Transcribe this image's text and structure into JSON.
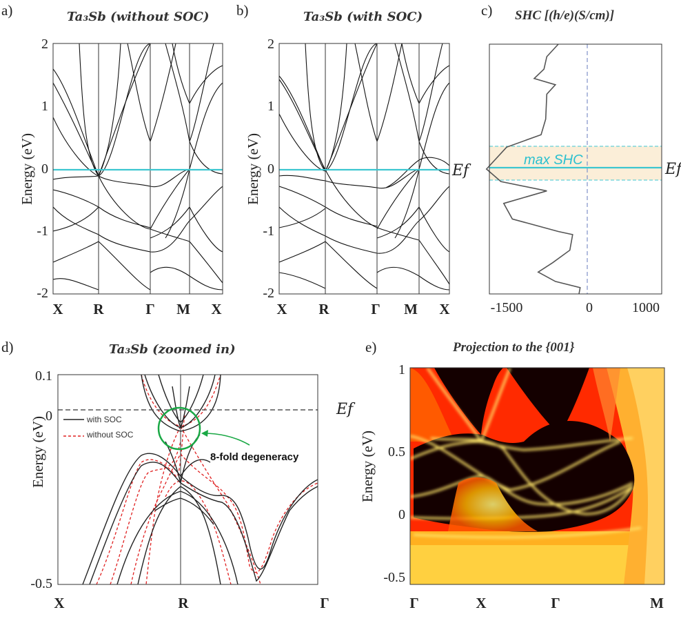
{
  "panels": {
    "a": {
      "letter": "a)",
      "title": "Ta₃Sb (without SOC)",
      "yticks": [
        "2",
        "1",
        "0",
        "-1",
        "-2"
      ],
      "ylabel": "Energy (eV)",
      "kpoints": [
        "X",
        "R",
        "Γ",
        "M",
        "X"
      ]
    },
    "b": {
      "letter": "b)",
      "title": "Ta₃Sb (with SOC)",
      "yticks": [
        "2",
        "1",
        "0",
        "-1",
        "-2"
      ],
      "ylabel": "Energy (eV)",
      "kpoints": [
        "X",
        "R",
        "Γ",
        "M",
        "X"
      ],
      "ef_label": "Ef"
    },
    "c": {
      "letter": "c)",
      "title": "SHC [(h/e)(S/cm)]",
      "xticks": [
        "-1500",
        "0",
        "1000"
      ],
      "ef_label": "Ef",
      "annotation": "max SHC"
    },
    "d": {
      "letter": "d)",
      "title": "Ta₃Sb (zoomed in)",
      "yticks": [
        "0.1",
        "0",
        "-0.5"
      ],
      "ylabel": "Energy (eV)",
      "kpoints": [
        "X",
        "R",
        "Γ"
      ],
      "ef_label": "Ef",
      "legend": [
        "with SOC",
        "without SOC"
      ],
      "annotation": "8-fold degeneracy"
    },
    "e": {
      "letter": "e)",
      "title": "Projection to the {001}",
      "yticks": [
        "1",
        "0.5",
        "0",
        "-0.5"
      ],
      "ylabel": "Energy (eV)",
      "kpoints": [
        "Γ",
        "X",
        "Γ",
        "M"
      ]
    }
  },
  "colors": {
    "fermi_line": "#3cc6d0",
    "with_soc": "#222222",
    "without_soc": "#e02020",
    "highlight_box": "#fbeed8",
    "degeneracy_circle": "#1aa845",
    "heatmap_high": "#ffd23a",
    "heatmap_low": "#ff2200"
  },
  "chart_data": [
    {
      "type": "line",
      "panel": "a",
      "title": "Ta₃Sb (without SOC)",
      "ylabel": "Energy (eV)",
      "ylim": [
        -2,
        2
      ],
      "x_kpath": [
        "X",
        "R",
        "Γ",
        "M",
        "X"
      ],
      "fermi_level": 0
    },
    {
      "type": "line",
      "panel": "b",
      "title": "Ta₃Sb (with SOC)",
      "ylabel": "Energy (eV)",
      "ylim": [
        -2,
        2
      ],
      "x_kpath": [
        "X",
        "R",
        "Γ",
        "M",
        "X"
      ],
      "fermi_level": 0
    },
    {
      "type": "line",
      "panel": "c",
      "title": "SHC [(h/e)(S/cm)]",
      "xlim": [
        -1500,
        1500
      ],
      "ylim": [
        -2,
        2
      ],
      "shc_max_near_ef": -1500,
      "x": [
        -300,
        -500,
        -550,
        -720,
        -350,
        -500,
        -520,
        -600,
        -1200,
        -1550,
        -1300,
        -500,
        -1250,
        -1100,
        -300,
        -50,
        -100,
        -400,
        -650,
        -350,
        80,
        60
      ],
      "y": [
        2.0,
        1.8,
        1.6,
        1.45,
        1.35,
        1.2,
        0.8,
        0.55,
        0.35,
        0.0,
        -0.2,
        -0.35,
        -0.55,
        -0.8,
        -1.0,
        -1.05,
        -1.3,
        -1.5,
        -1.65,
        -1.8,
        -1.9,
        -2.0
      ]
    },
    {
      "type": "line",
      "panel": "d",
      "title": "Ta₃Sb (zoomed in)",
      "ylabel": "Energy (eV)",
      "ylim": [
        -0.5,
        0.1
      ],
      "x_kpath": [
        "X",
        "R",
        "Γ"
      ],
      "series": [
        {
          "name": "with SOC"
        },
        {
          "name": "without SOC"
        }
      ],
      "fermi_level": 0.02
    },
    {
      "type": "heatmap",
      "panel": "e",
      "title": "Projection to the {001}",
      "ylabel": "Energy (eV)",
      "ylim": [
        -0.55,
        1
      ],
      "x_kpath": [
        "Γ",
        "X",
        "Γ",
        "M"
      ]
    }
  ]
}
